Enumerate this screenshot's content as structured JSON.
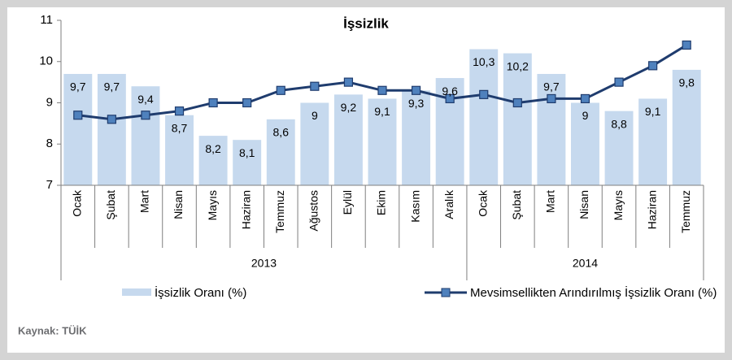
{
  "chart_data": {
    "type": "bar",
    "title": "İşsizlik",
    "groups": [
      {
        "label": "2013",
        "categories": [
          "Ocak",
          "Şubat",
          "Mart",
          "Nisan",
          "Mayıs",
          "Haziran",
          "Temmuz",
          "Ağustos",
          "Eylül",
          "Ekim",
          "Kasım",
          "Aralık"
        ]
      },
      {
        "label": "2014",
        "categories": [
          "Ocak",
          "Şubat",
          "Mart",
          "Nisan",
          "Mayıs",
          "Haziran",
          "Temmuz"
        ]
      }
    ],
    "series": [
      {
        "name": "İşsizlik Oranı (%)",
        "type": "bar",
        "color": "#c6d9ee",
        "values": [
          9.7,
          9.7,
          9.4,
          8.7,
          8.2,
          8.1,
          8.6,
          9,
          9.2,
          9.1,
          9.3,
          9.6,
          10.3,
          10.2,
          9.7,
          9,
          8.8,
          9.1,
          9.8
        ],
        "value_labels": [
          "9,7",
          "9,7",
          "9,4",
          "8,7",
          "8,2",
          "8,1",
          "8,6",
          "9",
          "9,2",
          "9,1",
          "9,3",
          "9,6",
          "10,3",
          "10,2",
          "9,7",
          "9",
          "8,8",
          "9,1",
          "9,8"
        ]
      },
      {
        "name": "Mevsimsellikten Arındırılmış İşsizlik Oranı (%)",
        "type": "line",
        "color": "#1f3c6e",
        "marker_color": "#4f81bd",
        "values": [
          8.7,
          8.6,
          8.7,
          8.8,
          9.0,
          9.0,
          9.3,
          9.4,
          9.5,
          9.3,
          9.3,
          9.1,
          9.2,
          9.0,
          9.1,
          9.1,
          9.5,
          9.9,
          10.4
        ]
      }
    ],
    "ylim": [
      7,
      11
    ],
    "yticks": [
      7,
      8,
      9,
      10,
      11
    ],
    "source": "Kaynak: TÜİK"
  }
}
